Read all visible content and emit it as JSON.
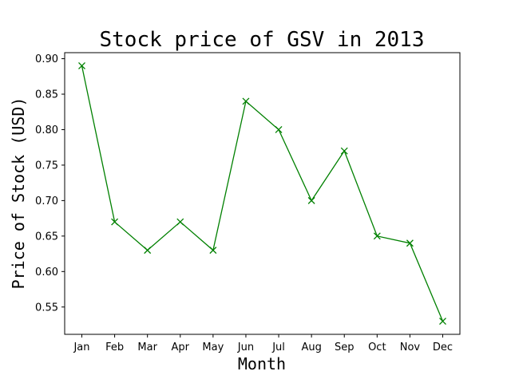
{
  "chart_data": {
    "type": "line",
    "title": "Stock price of GSV in 2013",
    "xlabel": "Month",
    "ylabel": "Price of Stock (USD)",
    "categories": [
      "Jan",
      "Feb",
      "Mar",
      "Apr",
      "May",
      "Jun",
      "Jul",
      "Aug",
      "Sep",
      "Oct",
      "Nov",
      "Dec"
    ],
    "series": [
      {
        "values": [
          0.89,
          0.67,
          0.63,
          0.67,
          0.63,
          0.84,
          0.8,
          0.7,
          0.77,
          0.65,
          0.64,
          0.53
        ],
        "color": "#008000",
        "marker": "x"
      }
    ],
    "ylim": [
      0.5115,
      0.9085
    ],
    "yticks": [
      0.55,
      0.6,
      0.65,
      0.7,
      0.75,
      0.8,
      0.85,
      0.9
    ],
    "ytick_labels": [
      "0.55",
      "0.60",
      "0.65",
      "0.70",
      "0.75",
      "0.80",
      "0.85",
      "0.90"
    ],
    "grid": false,
    "legend": "none"
  }
}
